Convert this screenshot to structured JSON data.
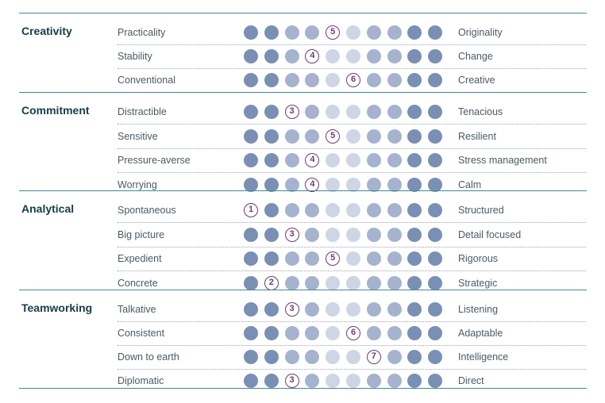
{
  "palette": {
    "rule": "#3f8a96",
    "heading": "#173b48",
    "text": "#4a5a66",
    "dot_dark": "#7a8fb4",
    "dot_mid": "#a5b3cf",
    "dot_light": "#ced5e5",
    "marker": "#6f3b71"
  },
  "scale_points": 10,
  "sections": [
    {
      "title": "Creativity",
      "rows": [
        {
          "left": "Practicality",
          "right": "Originality",
          "score": 5
        },
        {
          "left": "Stability",
          "right": "Change",
          "score": 4
        },
        {
          "left": "Conventional",
          "right": "Creative",
          "score": 6
        }
      ]
    },
    {
      "title": "Commitment",
      "rows": [
        {
          "left": "Distractible",
          "right": "Tenacious",
          "score": 3
        },
        {
          "left": "Sensitive",
          "right": "Resilient",
          "score": 5
        },
        {
          "left": "Pressure-averse",
          "right": "Stress management",
          "score": 4
        },
        {
          "left": "Worrying",
          "right": "Calm",
          "score": 4
        }
      ]
    },
    {
      "title": "Analytical",
      "rows": [
        {
          "left": "Spontaneous",
          "right": "Structured",
          "score": 1
        },
        {
          "left": "Big picture",
          "right": "Detail focused",
          "score": 3
        },
        {
          "left": "Expedient",
          "right": "Rigorous",
          "score": 5
        },
        {
          "left": "Concrete",
          "right": "Strategic",
          "score": 2
        }
      ]
    },
    {
      "title": "Teamworking",
      "rows": [
        {
          "left": "Talkative",
          "right": "Listening",
          "score": 3
        },
        {
          "left": "Consistent",
          "right": "Adaptable",
          "score": 6
        },
        {
          "left": "Down to earth",
          "right": "Intelligence",
          "score": 7
        },
        {
          "left": "Diplomatic",
          "right": "Direct",
          "score": 3
        }
      ]
    }
  ]
}
